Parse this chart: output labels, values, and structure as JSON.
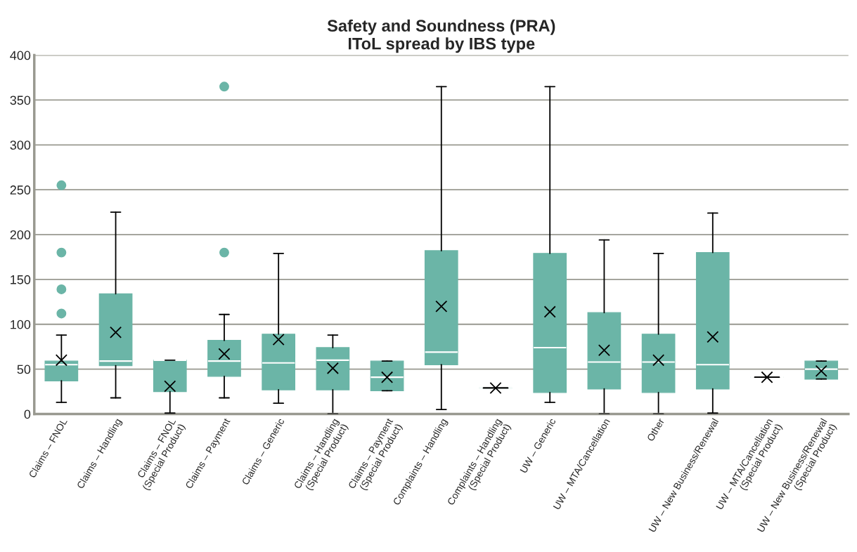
{
  "chart_data": {
    "type": "box",
    "title": "Safety and Soundness (PRA)\nIToL spread by IBS type",
    "categories": [
      "Claims – FNOL",
      "Claims – Handling",
      "Claims – FNOL\n(Special Product)",
      "Claims – Payment",
      "Claims – Generic",
      "Claims – Handling\n(Special Product)",
      "Claims – Payment\n(Special Product)",
      "Complaints – Handling",
      "Complaints – Handling\n(Special Product)",
      "UW – Generic",
      "UW – MTA/Cancellation",
      "Other",
      "UW – New Business/Renewal",
      "UW – MTA/Cancellation\n(Special Product)",
      "UW – New Business/Renewal\n(Special Product)"
    ],
    "series": [
      {
        "color": "#6bb5a7",
        "boxes": [
          {
            "low": 13,
            "q1": 37,
            "median": 55,
            "q3": 59,
            "high": 88,
            "mean": 60,
            "outliers": [
              112,
              139,
              180,
              255
            ]
          },
          {
            "low": 18,
            "q1": 54,
            "median": 59,
            "q3": 134,
            "high": 225,
            "mean": 91
          },
          {
            "low": 1,
            "q1": 25,
            "median": 60,
            "q3": 60,
            "high": 60,
            "mean": 31
          },
          {
            "low": 18,
            "q1": 42,
            "median": 59,
            "q3": 82,
            "high": 111,
            "mean": 67,
            "outliers": [
              180,
              365
            ]
          },
          {
            "low": 12,
            "q1": 27,
            "median": 57,
            "q3": 89,
            "high": 179,
            "mean": 83
          },
          {
            "low": 0,
            "q1": 27,
            "median": 60,
            "q3": 74,
            "high": 88,
            "mean": 51
          },
          {
            "low": 26,
            "q1": 26,
            "median": 41,
            "q3": 59,
            "high": 59,
            "mean": 41
          },
          {
            "low": 5,
            "q1": 55,
            "median": 69,
            "q3": 182,
            "high": 365,
            "mean": 120
          },
          {
            "low": 29,
            "q1": 29,
            "median": 29,
            "q3": 29,
            "high": 29,
            "mean": 29
          },
          {
            "low": 13,
            "q1": 24,
            "median": 74,
            "q3": 179,
            "high": 365,
            "mean": 114
          },
          {
            "low": 0,
            "q1": 28,
            "median": 58,
            "q3": 113,
            "high": 194,
            "mean": 71
          },
          {
            "low": 0,
            "q1": 24,
            "median": 58,
            "q3": 89,
            "high": 179,
            "mean": 60
          },
          {
            "low": 1,
            "q1": 28,
            "median": 55,
            "q3": 180,
            "high": 224,
            "mean": 86
          },
          {
            "low": 41,
            "q1": 41,
            "median": 41,
            "q3": 41,
            "high": 41,
            "mean": 41
          },
          {
            "low": 39,
            "q1": 39,
            "median": 50,
            "q3": 59,
            "high": 59,
            "mean": 48
          }
        ]
      }
    ],
    "ylim": [
      0,
      400
    ],
    "yticks": [
      0,
      50,
      100,
      150,
      200,
      250,
      300,
      350,
      400
    ],
    "grid": "y",
    "marker": "cross"
  }
}
